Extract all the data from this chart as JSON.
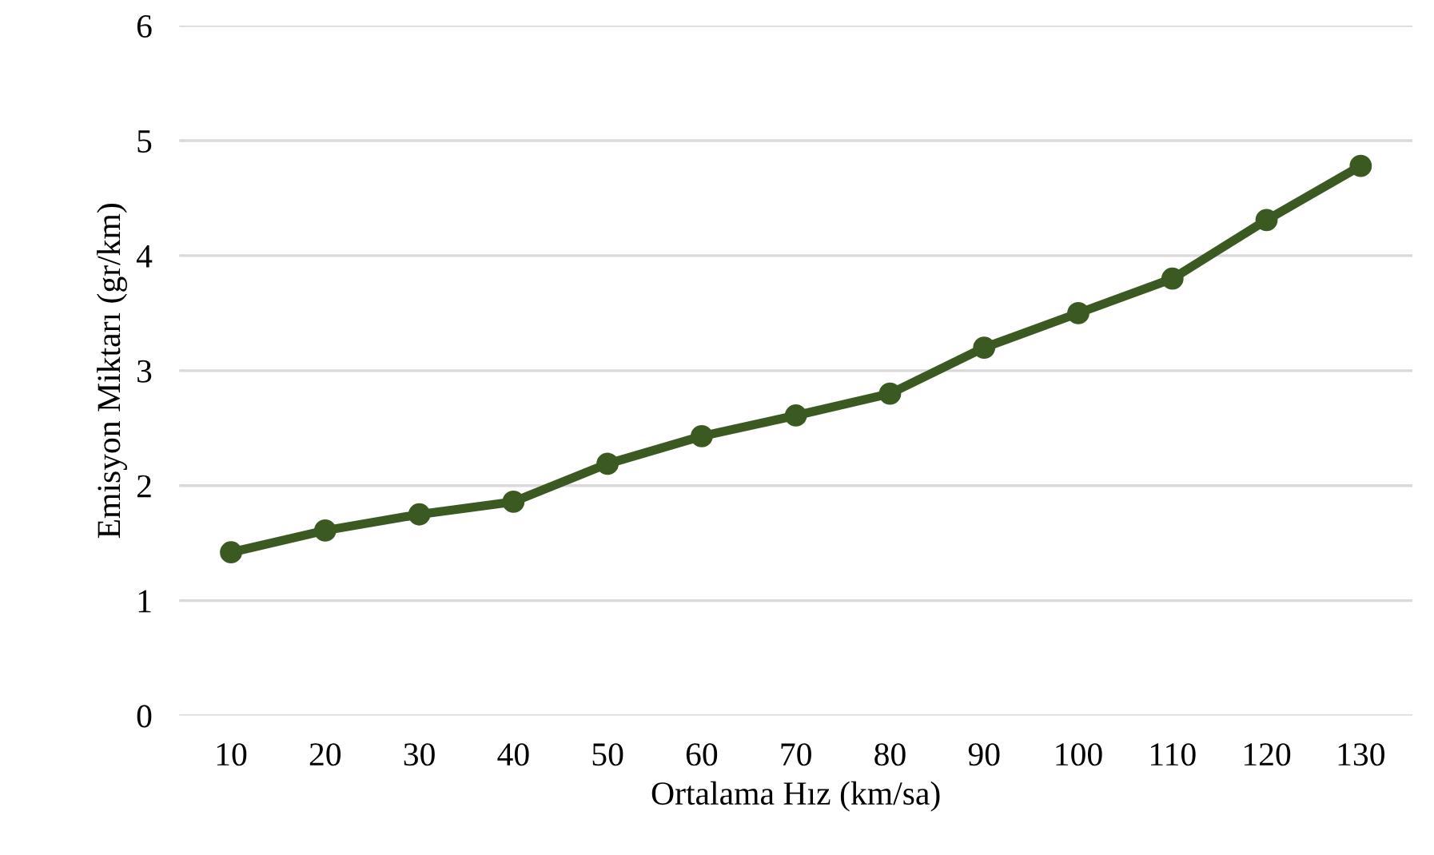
{
  "chart_data": {
    "type": "line",
    "xlabel": "Ortalama Hız (km/sa)",
    "ylabel": "Emisyon Miktarı (gr/km)",
    "categories": [
      "10",
      "20",
      "30",
      "40",
      "50",
      "60",
      "70",
      "80",
      "90",
      "100",
      "110",
      "120",
      "130"
    ],
    "series": [
      {
        "color": "#3b5a22",
        "values": [
          1.42,
          1.61,
          1.75,
          1.86,
          2.19,
          2.43,
          2.61,
          2.8,
          3.2,
          3.5,
          3.8,
          4.31,
          4.78
        ]
      }
    ],
    "ylim": [
      0,
      6
    ],
    "yticks": [
      0,
      1,
      2,
      3,
      4,
      5,
      6
    ],
    "grid": "y",
    "marker": "circle",
    "line_style": "solid"
  }
}
